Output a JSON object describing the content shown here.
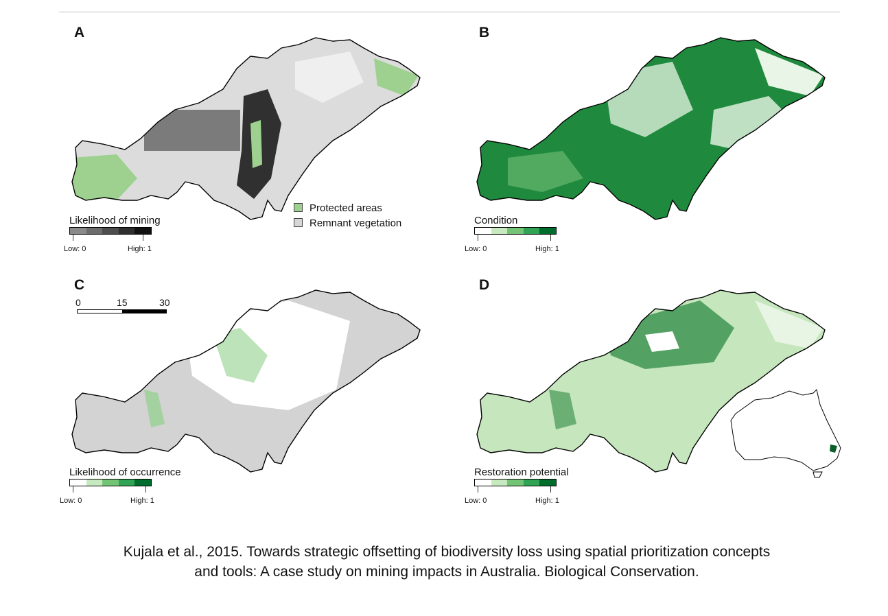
{
  "figure": {
    "caption_line1": "Kujala et al., 2015. Towards strategic offsetting of biodiversity loss using spatial prioritization concepts",
    "caption_line2": "and tools: A case study on mining impacts in Australia. Biological Conservation."
  },
  "panels": [
    {
      "letter": "A",
      "legend_title": "Likelihood of mining",
      "low_label": "Low: 0",
      "high_label": "High: 1",
      "ramp_colors": [
        "#8a8a8a",
        "#6c6c6c",
        "#4d4d4d",
        "#2e2e2e",
        "#111111"
      ],
      "keys": [
        {
          "label": "Protected areas",
          "color": "#9ed18f"
        },
        {
          "label": "Remnant vegetation",
          "color": "#d6d6d6"
        }
      ],
      "fill_base": "#dcdcdc",
      "fill_accent": "#7b7b7b",
      "fill_dark": "#303030",
      "fill_green": "#9ed18f"
    },
    {
      "letter": "B",
      "legend_title": "Condition",
      "low_label": "Low: 0",
      "high_label": "High: 1",
      "ramp_colors": [
        "#ffffff",
        "#c7e9c0",
        "#74c476",
        "#31a354",
        "#006d2c"
      ],
      "fill_base": "#1f8a3e",
      "fill_light": "#e9f5e6",
      "fill_mid": "#66b86f"
    },
    {
      "letter": "C",
      "legend_title": "Likelihood of occurrence",
      "low_label": "Low: 0",
      "high_label": "High: 1",
      "ramp_colors": [
        "#ffffff",
        "#c7e9c0",
        "#74c476",
        "#31a354",
        "#006d2c"
      ],
      "scale": {
        "t0": "0",
        "t1": "15",
        "t2": "30"
      },
      "fill_base": "#d3d3d3",
      "fill_light": "#ffffff",
      "fill_green": "#8fd08a"
    },
    {
      "letter": "D",
      "legend_title": "Restoration potential",
      "low_label": "Low: 0",
      "high_label": "High: 1",
      "ramp_colors": [
        "#ffffff",
        "#c7e9c0",
        "#74c476",
        "#31a354",
        "#006d2c"
      ],
      "fill_base": "#c6e6bd",
      "fill_light": "#ffffff",
      "fill_dark": "#2e8b45"
    }
  ]
}
